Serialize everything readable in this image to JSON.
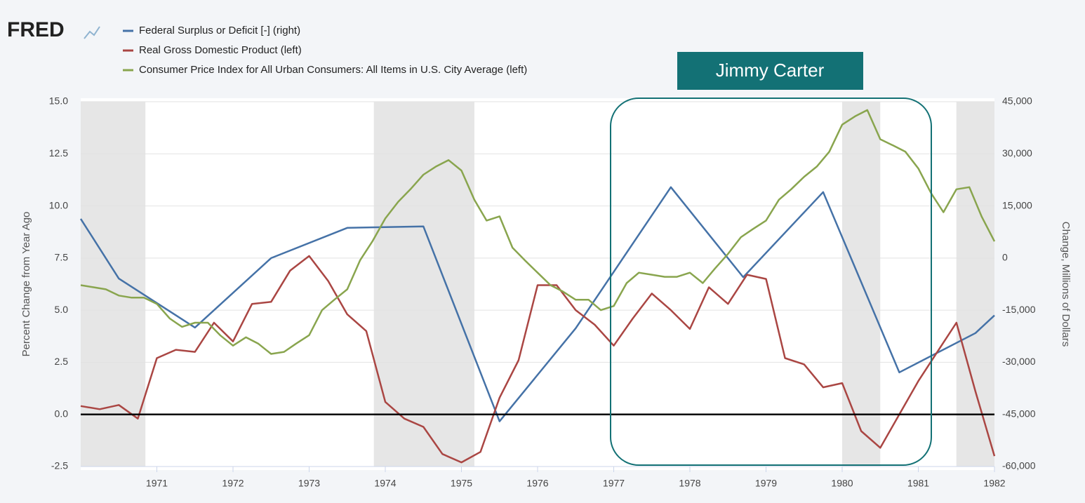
{
  "chart_data": {
    "type": "line",
    "logo": "FRED",
    "annotation": "Jimmy Carter",
    "y_label": "Percent Change from Year Ago",
    "y2_label": "Change, Millions of Dollars",
    "xlim": [
      1970,
      1982
    ],
    "xticks": [
      1971,
      1972,
      1973,
      1974,
      1975,
      1976,
      1977,
      1978,
      1979,
      1980,
      1981,
      1982
    ],
    "ylim": [
      -2.5,
      15
    ],
    "yticks": [
      {
        "value": -2.5,
        "label": "-2.5"
      },
      {
        "value": 0,
        "label": "0.0"
      },
      {
        "value": 2.5,
        "label": "2.5"
      },
      {
        "value": 5,
        "label": "5.0"
      },
      {
        "value": 7.5,
        "label": "7.5"
      },
      {
        "value": 10,
        "label": "10.0"
      },
      {
        "value": 12.5,
        "label": "12.5"
      },
      {
        "value": 15,
        "label": "15.0"
      }
    ],
    "y2lim": [
      -60000,
      45000
    ],
    "y2ticks": [
      {
        "value": -60000,
        "label": "-60,000"
      },
      {
        "value": -45000,
        "label": "-45,000"
      },
      {
        "value": -30000,
        "label": "-30,000"
      },
      {
        "value": -15000,
        "label": "-15,000"
      },
      0,
      {
        "value": 15000,
        "label": "15,000"
      },
      {
        "value": 30000,
        "label": "30,000"
      },
      {
        "value": 45000,
        "label": "45,000"
      }
    ],
    "grid": true,
    "zero_line": true,
    "recessions": [
      [
        1970,
        1970.85
      ],
      [
        1973.85,
        1975.17
      ],
      [
        1980,
        1980.5
      ],
      [
        1981.5,
        1982
      ]
    ],
    "series": [
      {
        "name": "Federal Surplus or Deficit [-] (right)",
        "color": "#4572a7",
        "axis": "y2",
        "x": [
          1970,
          1970.5,
          1971.5,
          1972.5,
          1973.5,
          1974.5,
          1975.5,
          1976.5,
          1977.75,
          1978.7,
          1979.75,
          1980.75,
          1981.75,
          1982
        ],
        "values": [
          11300,
          -5900,
          -20000,
          0,
          8700,
          9100,
          -47000,
          -20200,
          20400,
          -5500,
          19000,
          -32900,
          -21600,
          -16500
        ]
      },
      {
        "name": "Real Gross Domestic Product (left)",
        "color": "#aa4643",
        "x": [
          1970,
          1970.25,
          1970.5,
          1970.75,
          1971,
          1971.25,
          1971.5,
          1971.75,
          1972,
          1972.25,
          1972.5,
          1972.75,
          1973,
          1973.25,
          1973.5,
          1973.75,
          1974,
          1974.25,
          1974.5,
          1974.75,
          1975,
          1975.25,
          1975.5,
          1975.75,
          1976,
          1976.25,
          1976.5,
          1976.75,
          1977,
          1977.25,
          1977.5,
          1977.75,
          1978,
          1978.25,
          1978.5,
          1978.75,
          1979,
          1979.25,
          1979.5,
          1979.75,
          1980,
          1980.25,
          1980.5,
          1980.75,
          1981,
          1981.25,
          1981.5,
          1981.75,
          1982
        ],
        "values": [
          0.4,
          0.25,
          0.45,
          -0.2,
          2.7,
          3.1,
          3.0,
          4.4,
          3.5,
          5.3,
          5.4,
          6.9,
          7.6,
          6.4,
          4.8,
          4.0,
          0.6,
          -0.2,
          -0.6,
          -1.9,
          -2.3,
          -1.8,
          0.8,
          2.6,
          6.2,
          6.2,
          5.0,
          4.3,
          3.3,
          4.6,
          5.8,
          5.0,
          4.1,
          6.1,
          5.3,
          6.7,
          6.5,
          2.7,
          2.4,
          1.3,
          1.5,
          -0.8,
          -1.6,
          0.0,
          1.6,
          3.0,
          4.4,
          1.1,
          -2.0
        ]
      },
      {
        "name": "Consumer Price Index for All Urban Consumers: All Items in U.S. City Average (left)",
        "color": "#89a54e",
        "x": [
          1970,
          1970.17,
          1970.33,
          1970.5,
          1970.67,
          1970.83,
          1971,
          1971.17,
          1971.33,
          1971.5,
          1971.67,
          1971.83,
          1972,
          1972.17,
          1972.33,
          1972.5,
          1972.67,
          1972.83,
          1973,
          1973.17,
          1973.33,
          1973.5,
          1973.67,
          1973.83,
          1974,
          1974.17,
          1974.33,
          1974.5,
          1974.67,
          1974.83,
          1975,
          1975.17,
          1975.33,
          1975.5,
          1975.67,
          1975.83,
          1976,
          1976.17,
          1976.33,
          1976.5,
          1976.67,
          1976.83,
          1977,
          1977.17,
          1977.33,
          1977.5,
          1977.67,
          1977.83,
          1978,
          1978.17,
          1978.33,
          1978.5,
          1978.67,
          1978.83,
          1979,
          1979.17,
          1979.33,
          1979.5,
          1979.67,
          1979.83,
          1980,
          1980.17,
          1980.33,
          1980.5,
          1980.67,
          1980.83,
          1981,
          1981.17,
          1981.33,
          1981.5,
          1981.67,
          1981.83,
          1982
        ],
        "values": [
          6.2,
          6.1,
          6.0,
          5.7,
          5.6,
          5.6,
          5.3,
          4.6,
          4.2,
          4.4,
          4.4,
          3.8,
          3.3,
          3.7,
          3.4,
          2.9,
          3.0,
          3.4,
          3.8,
          5.0,
          5.5,
          6.0,
          7.4,
          8.3,
          9.4,
          10.2,
          10.8,
          11.5,
          11.9,
          12.2,
          11.7,
          10.3,
          9.3,
          9.5,
          8.0,
          7.4,
          6.8,
          6.2,
          5.9,
          5.5,
          5.5,
          5.0,
          5.2,
          6.3,
          6.8,
          6.7,
          6.6,
          6.6,
          6.8,
          6.3,
          7.0,
          7.7,
          8.5,
          8.9,
          9.3,
          10.3,
          10.8,
          11.4,
          11.9,
          12.6,
          13.9,
          14.3,
          14.6,
          13.2,
          12.9,
          12.6,
          11.8,
          10.6,
          9.7,
          10.8,
          10.9,
          9.5,
          8.3
        ]
      }
    ]
  }
}
